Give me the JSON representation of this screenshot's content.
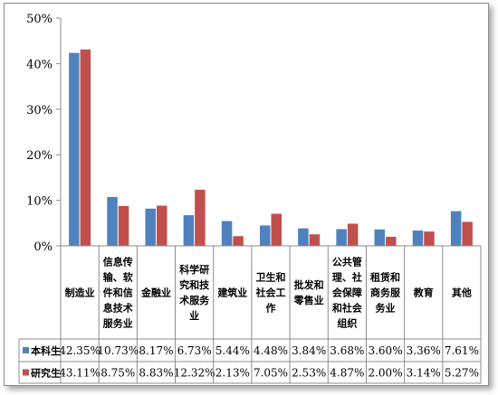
{
  "chart_data": {
    "type": "bar",
    "title": "",
    "xlabel": "",
    "ylabel": "",
    "ylim": [
      0,
      50
    ],
    "y_ticks": [
      "0%",
      "10%",
      "20%",
      "30%",
      "40%",
      "50%"
    ],
    "grid": false,
    "legend": "data table rows (left)",
    "categories": [
      [
        "制造业"
      ],
      [
        "信息传",
        "输、软",
        "件和信",
        "息技术",
        "服务业"
      ],
      [
        "金融业"
      ],
      [
        "科学研",
        "究和技",
        "术服务",
        "业"
      ],
      [
        "建筑业"
      ],
      [
        "卫生和",
        "社会工",
        "作"
      ],
      [
        "批发和",
        "零售业"
      ],
      [
        "公共管",
        "理、社",
        "会保障",
        "和社会",
        "组织"
      ],
      [
        "租赁和",
        "商务服",
        "务业"
      ],
      [
        "教育"
      ],
      [
        "其他"
      ]
    ],
    "series": [
      {
        "name": "本科生",
        "color": "#4f81bd",
        "values": [
          42.35,
          10.73,
          8.17,
          6.73,
          5.44,
          4.48,
          3.84,
          3.68,
          3.6,
          3.36,
          7.61
        ],
        "labels": [
          "42.35%",
          "10.73%",
          "8.17%",
          "6.73%",
          "5.44%",
          "4.48%",
          "3.84%",
          "3.68%",
          "3.60%",
          "3.36%",
          "7.61%"
        ]
      },
      {
        "name": "研究生",
        "color": "#c0504d",
        "values": [
          43.11,
          8.75,
          8.83,
          12.32,
          2.13,
          7.05,
          2.53,
          4.87,
          2.0,
          3.14,
          5.27
        ],
        "labels": [
          "43.11%",
          "8.75%",
          "8.83%",
          "12.32%",
          "2.13%",
          "7.05%",
          "2.53%",
          "4.87%",
          "2.00%",
          "3.14%",
          "5.27%"
        ]
      }
    ]
  }
}
